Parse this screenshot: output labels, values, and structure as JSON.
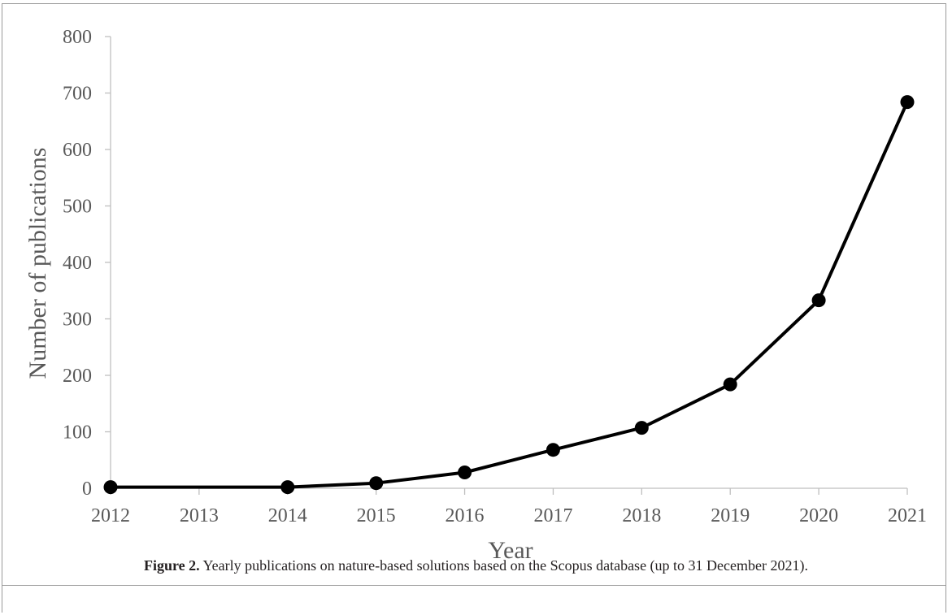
{
  "figure": {
    "caption_label": "Figure 2.",
    "caption_text": " Yearly publications on nature-based solutions based on the Scopus database (up to 31 December 2021)."
  },
  "chart_data": {
    "type": "line",
    "title": "",
    "xlabel": "Year",
    "ylabel": "Number of publications",
    "categories": [
      "2012",
      "2013",
      "2014",
      "2015",
      "2016",
      "2017",
      "2018",
      "2019",
      "2020",
      "2021"
    ],
    "series": [
      {
        "name": "",
        "points": [
          {
            "x": "2012",
            "y": 2
          },
          {
            "x": "2014",
            "y": 2
          },
          {
            "x": "2015",
            "y": 9
          },
          {
            "x": "2016",
            "y": 28
          },
          {
            "x": "2017",
            "y": 68
          },
          {
            "x": "2018",
            "y": 107
          },
          {
            "x": "2019",
            "y": 184
          },
          {
            "x": "2020",
            "y": 333
          },
          {
            "x": "2021",
            "y": 684
          }
        ]
      }
    ],
    "ylim": [
      0,
      800
    ],
    "yticks": [
      0,
      100,
      200,
      300,
      400,
      500,
      600,
      700,
      800
    ],
    "grid": false,
    "legend": "none",
    "colors": {
      "line": "#000000",
      "marker": "#000000",
      "axis": "#bfbfbf",
      "text": "#595959"
    }
  }
}
